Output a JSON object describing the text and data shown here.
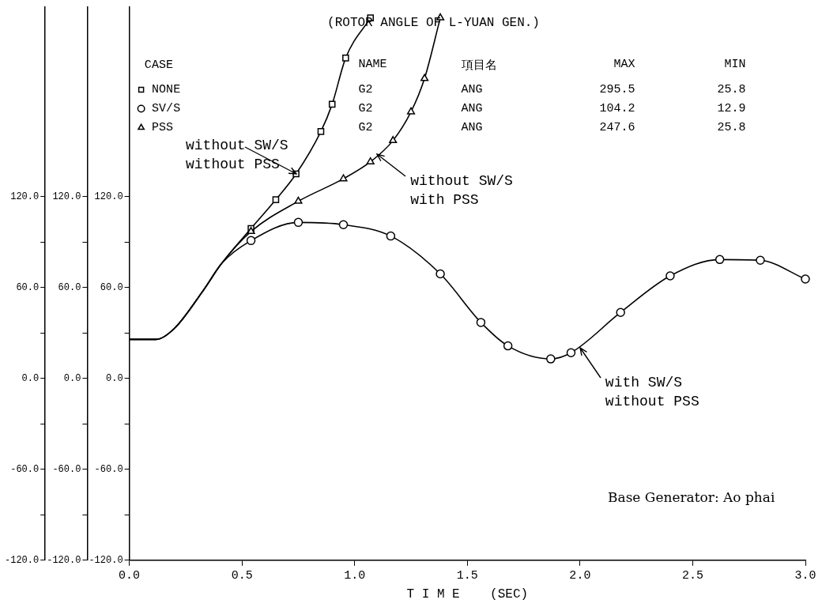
{
  "chart_data": {
    "type": "line",
    "title": "(ROTOR ANGLE OF L-YUAN GEN.)",
    "xlabel": "T I M E    (SEC)",
    "xlim": [
      0,
      3
    ],
    "xticks": [
      {
        "value": 0,
        "label": "0.0"
      },
      {
        "value": 0.5,
        "label": "0.5"
      },
      {
        "value": 1,
        "label": "1.0"
      },
      {
        "value": 1.5,
        "label": "1.5"
      },
      {
        "value": 2,
        "label": "2.0"
      },
      {
        "value": 2.5,
        "label": "2.5"
      },
      {
        "value": 3,
        "label": "3.0"
      }
    ],
    "ylim": [
      -120,
      245
    ],
    "yticks": [
      {
        "value": -120,
        "label": "-120.0"
      },
      {
        "value": -90,
        "label": null
      },
      {
        "value": -60,
        "label": "-60.0"
      },
      {
        "value": -30,
        "label": null
      },
      {
        "value": 0,
        "label": "0.0"
      },
      {
        "value": 30,
        "label": null
      },
      {
        "value": 60,
        "label": "60.0"
      },
      {
        "value": 90,
        "label": null
      },
      {
        "value": 120,
        "label": "120.0"
      }
    ],
    "y2lim": [
      -120,
      245
    ],
    "y2ticks": [
      {
        "value": -120,
        "label": "-120.0"
      },
      {
        "value": -90,
        "label": null
      },
      {
        "value": -60,
        "label": "-60.0"
      },
      {
        "value": -30,
        "label": null
      },
      {
        "value": 0,
        "label": "0.0"
      },
      {
        "value": 30,
        "label": null
      },
      {
        "value": 60,
        "label": "60.0"
      },
      {
        "value": 90,
        "label": null
      },
      {
        "value": 120,
        "label": "120.0"
      }
    ],
    "y3lim": [
      -120,
      245
    ],
    "y3ticks": [
      {
        "value": -120,
        "label": "-120.0"
      },
      {
        "value": -90,
        "label": null
      },
      {
        "value": -60,
        "label": "-60.0"
      },
      {
        "value": -30,
        "label": null
      },
      {
        "value": 0,
        "label": "0.0"
      },
      {
        "value": 30,
        "label": null
      },
      {
        "value": 60,
        "label": "60.0"
      },
      {
        "value": 90,
        "label": null
      },
      {
        "value": 120,
        "label": "120.0"
      }
    ],
    "legend": "top left",
    "legend_title": "CASE",
    "line_style": "solid",
    "series": [
      {
        "name": "NONE",
        "color": "#000000",
        "marker": "square",
        "axis": "y",
        "x": [
          0,
          0.12,
          0.2,
          0.33,
          0.41,
          0.54,
          0.65,
          0.74,
          0.85,
          0.9,
          0.96,
          1.07
        ],
        "values": [
          25.8,
          25.8,
          33,
          58.5,
          76,
          99,
          118,
          135,
          163,
          181,
          211.5,
          238
        ]
      },
      {
        "name": "SV/S",
        "color": "#000000",
        "marker": "circle",
        "axis": "y2",
        "x": [
          0,
          0.12,
          0.2,
          0.33,
          0.41,
          0.54,
          0.75,
          0.95,
          1.16,
          1.38,
          1.56,
          1.68,
          1.87,
          1.96,
          2.18,
          2.4,
          2.62,
          2.8,
          3.0
        ],
        "values": [
          25.8,
          25.8,
          33,
          58.5,
          76,
          91,
          103,
          101.5,
          94,
          69,
          37,
          21.5,
          12.9,
          17,
          43.6,
          67.7,
          78.5,
          78,
          65.6
        ]
      },
      {
        "name": "PSS",
        "color": "#000000",
        "marker": "triangle",
        "axis": "y3",
        "x": [
          0,
          0.12,
          0.2,
          0.33,
          0.41,
          0.54,
          0.75,
          0.95,
          1.07,
          1.17,
          1.25,
          1.31,
          1.38
        ],
        "values": [
          25.8,
          25.8,
          33,
          58.5,
          76,
          97,
          117,
          131.8,
          143,
          157,
          176,
          198,
          238
        ]
      }
    ],
    "annotations": [
      "NAME",
      "項目名",
      "MAX",
      "MIN",
      "G2",
      "ANG",
      "295.5",
      "25.8",
      "G2",
      "ANG",
      "104.2",
      "12.9",
      "G2",
      "ANG",
      "247.6",
      "25.8",
      {
        "text": "without SW/S\nwithout PSS",
        "x": 0.74,
        "y": 135
      },
      {
        "text": "without SW/S\nwith PSS",
        "x": 1.1,
        "y": 148
      },
      {
        "text": "with SW/S\nwithout PSS",
        "x": 2.0,
        "y": 20
      },
      "Base Generator: Ao phai"
    ]
  }
}
